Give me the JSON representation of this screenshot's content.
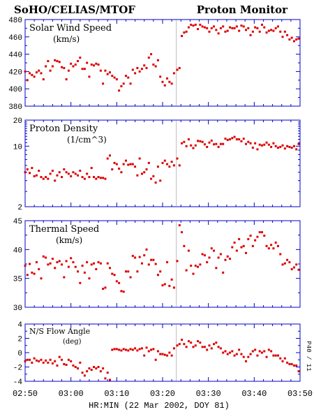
{
  "header": {
    "left_title": "SoHO/CELIAS/MTOF",
    "right_title": "Proton Monitor"
  },
  "xaxis": {
    "label": "HR:MIN (22 Mar 2002, DOY 81)",
    "tick_labels": [
      "02:50",
      "03:00",
      "03:10",
      "03:20",
      "03:30",
      "03:40",
      "03:50"
    ]
  },
  "side_label": "P40 / 11",
  "colors": {
    "frame": "#0000cc",
    "points": "#dd0000",
    "text": "#000000",
    "marker_line": "#bbbbbb"
  },
  "chart_data": [
    {
      "type": "scatter",
      "title": "Solar Wind Speed",
      "units": "(km/s)",
      "scale": "linear",
      "xlim": [
        0,
        60
      ],
      "ylim": [
        380,
        480
      ],
      "yticks": [
        380,
        400,
        420,
        440,
        460,
        480
      ],
      "ytick_labels": [
        "380",
        "400",
        "420",
        "440",
        "460",
        "480"
      ],
      "marker_x": 33,
      "x": [
        0.0,
        0.5,
        1.0,
        1.5,
        2.0,
        2.5,
        3.0,
        3.5,
        4.0,
        4.5,
        5.0,
        5.5,
        6.0,
        6.5,
        7.0,
        7.5,
        8.0,
        8.5,
        9.0,
        9.5,
        10.0,
        10.5,
        11.0,
        11.5,
        12.0,
        12.5,
        13.0,
        13.5,
        14.0,
        14.5,
        15.0,
        15.5,
        16.0,
        16.5,
        17.0,
        17.5,
        18.0,
        18.5,
        19.0,
        19.5,
        20.0,
        20.5,
        21.0,
        21.5,
        22.0,
        22.5,
        23.0,
        23.5,
        24.0,
        24.5,
        25.0,
        25.5,
        26.0,
        26.5,
        27.0,
        27.5,
        28.0,
        28.5,
        29.0,
        29.5,
        30.0,
        30.5,
        31.0,
        31.5,
        32.0,
        32.5,
        33.2,
        33.7,
        34.2,
        34.7,
        35.2,
        35.7,
        36.2,
        36.7,
        37.2,
        37.7,
        38.2,
        38.7,
        39.2,
        39.7,
        40.2,
        40.7,
        41.2,
        41.7,
        42.2,
        42.7,
        43.2,
        43.7,
        44.2,
        44.7,
        45.2,
        45.7,
        46.2,
        46.7,
        47.2,
        47.7,
        48.2,
        48.7,
        49.2,
        49.7,
        50.2,
        50.7,
        51.2,
        51.7,
        52.2,
        52.7,
        53.2,
        53.7,
        54.2,
        54.7,
        55.2,
        55.7,
        56.2,
        56.7,
        57.2,
        57.7,
        58.2,
        58.7,
        59.2,
        59.7
      ],
      "values": [
        420,
        410,
        418,
        416,
        414,
        419,
        421,
        418,
        411,
        426,
        432,
        421,
        426,
        433,
        432,
        431,
        425,
        424,
        411,
        421,
        429,
        426,
        428,
        432,
        436,
        423,
        423,
        430,
        414,
        428,
        427,
        429,
        428,
        421,
        406,
        421,
        417,
        419,
        415,
        413,
        411,
        398,
        403,
        406,
        415,
        413,
        406,
        422,
        418,
        424,
        420,
        423,
        427,
        424,
        436,
        440,
        428,
        426,
        433,
        414,
        408,
        404,
        412,
        408,
        406,
        418,
        422,
        424,
        461,
        465,
        466,
        471,
        474,
        473,
        474,
        469,
        474,
        472,
        471,
        470,
        466,
        470,
        472,
        468,
        464,
        470,
        472,
        466,
        467,
        471,
        470,
        470,
        472,
        467,
        473,
        472,
        468,
        470,
        462,
        466,
        471,
        470,
        466,
        474,
        471,
        465,
        467,
        468,
        467,
        470,
        472,
        466,
        460,
        466,
        462,
        457,
        459,
        455,
        457,
        458
      ]
    },
    {
      "type": "scatter",
      "title": "Proton Density",
      "units": "(1/cm^3)",
      "scale": "log",
      "xlim": [
        0,
        60
      ],
      "ylim": [
        2,
        20
      ],
      "yticks": [
        2,
        10,
        20
      ],
      "ytick_labels": [
        "2",
        "10",
        "20"
      ],
      "marker_x": 33,
      "x": [
        0.0,
        0.5,
        1.0,
        1.5,
        2.0,
        2.5,
        3.0,
        3.5,
        4.0,
        4.5,
        5.0,
        5.5,
        6.0,
        6.5,
        7.0,
        7.5,
        8.0,
        8.5,
        9.0,
        9.5,
        10.0,
        10.5,
        11.0,
        11.5,
        12.0,
        12.5,
        13.0,
        13.5,
        14.0,
        14.5,
        15.0,
        15.5,
        16.0,
        16.5,
        17.0,
        17.5,
        18.0,
        18.5,
        19.0,
        19.5,
        20.0,
        20.5,
        21.0,
        21.5,
        22.0,
        22.5,
        23.0,
        23.5,
        24.0,
        24.5,
        25.0,
        25.5,
        26.0,
        26.5,
        27.0,
        27.5,
        28.0,
        28.5,
        29.0,
        29.5,
        30.0,
        30.5,
        31.0,
        31.5,
        32.0,
        32.5,
        33.2,
        33.7,
        34.2,
        34.7,
        35.2,
        35.7,
        36.2,
        36.7,
        37.2,
        37.7,
        38.2,
        38.7,
        39.2,
        39.7,
        40.2,
        40.7,
        41.2,
        41.7,
        42.2,
        42.7,
        43.2,
        43.7,
        44.2,
        44.7,
        45.2,
        45.7,
        46.2,
        46.7,
        47.2,
        47.7,
        48.2,
        48.7,
        49.2,
        49.7,
        50.2,
        50.7,
        51.2,
        51.7,
        52.2,
        52.7,
        53.2,
        53.7,
        54.2,
        54.7,
        55.2,
        55.7,
        56.2,
        56.7,
        57.2,
        57.7,
        58.2,
        58.7,
        59.2,
        59.7
      ],
      "values": [
        5.0,
        5.4,
        4.9,
        5.6,
        4.5,
        4.6,
        5.2,
        4.4,
        4.2,
        4.4,
        4.2,
        4.8,
        5.2,
        4.0,
        4.6,
        5.0,
        4.4,
        5.4,
        5.0,
        4.8,
        4.5,
        5.0,
        4.8,
        4.6,
        5.2,
        4.4,
        4.2,
        4.8,
        4.4,
        5.6,
        4.4,
        4.2,
        4.4,
        4.3,
        4.3,
        4.2,
        7.2,
        7.8,
        5.4,
        6.4,
        6.2,
        5.5,
        5.0,
        6.2,
        6.8,
        6.1,
        6.2,
        6.2,
        5.8,
        4.6,
        7.2,
        4.8,
        5.0,
        5.4,
        6.4,
        4.2,
        4.5,
        3.8,
        5.8,
        4.0,
        6.4,
        6.8,
        6.2,
        5.8,
        6.6,
        6.0,
        7.2,
        6.0,
        10.8,
        11.2,
        10.0,
        12.0,
        10.2,
        9.5,
        10.2,
        11.5,
        11.4,
        11.2,
        10.5,
        9.8,
        11.0,
        11.6,
        10.5,
        10.6,
        9.8,
        10.6,
        10.6,
        12.2,
        11.8,
        12.0,
        12.4,
        12.8,
        12.0,
        12.0,
        11.4,
        12.2,
        10.6,
        11.2,
        10.8,
        9.6,
        10.8,
        9.2,
        10.4,
        10.2,
        10.4,
        11.0,
        10.4,
        9.8,
        10.8,
        10.0,
        9.6,
        9.8,
        10.2,
        9.4,
        10.0,
        9.8,
        9.6,
        10.0,
        9.2,
        10.6
      ]
    },
    {
      "type": "scatter",
      "title": "Thermal Speed",
      "units": "(km/s)",
      "scale": "linear",
      "xlim": [
        0,
        60
      ],
      "ylim": [
        30,
        45
      ],
      "yticks": [
        30,
        35,
        40,
        45
      ],
      "ytick_labels": [
        "30",
        "35",
        "40",
        "45"
      ],
      "marker_x": 33,
      "x": [
        0.0,
        0.5,
        1.0,
        1.5,
        2.0,
        2.5,
        3.0,
        3.5,
        4.0,
        4.5,
        5.0,
        5.5,
        6.0,
        6.5,
        7.0,
        7.5,
        8.0,
        8.5,
        9.0,
        9.5,
        10.0,
        10.5,
        11.0,
        11.5,
        12.0,
        12.5,
        13.0,
        13.5,
        14.0,
        14.5,
        15.0,
        15.5,
        16.0,
        16.5,
        17.0,
        17.5,
        18.0,
        18.5,
        19.0,
        19.5,
        20.0,
        20.5,
        21.0,
        21.5,
        22.0,
        22.5,
        23.0,
        23.5,
        24.0,
        24.5,
        25.0,
        25.5,
        26.0,
        26.5,
        27.0,
        27.5,
        28.0,
        28.5,
        29.0,
        29.5,
        30.0,
        30.5,
        31.0,
        31.5,
        32.0,
        32.5,
        33.2,
        33.7,
        34.2,
        34.7,
        35.2,
        35.7,
        36.2,
        36.7,
        37.2,
        37.7,
        38.2,
        38.7,
        39.2,
        39.7,
        40.2,
        40.7,
        41.2,
        41.7,
        42.2,
        42.7,
        43.2,
        43.7,
        44.2,
        44.7,
        45.2,
        45.7,
        46.2,
        46.7,
        47.2,
        47.7,
        48.2,
        48.7,
        49.2,
        49.7,
        50.2,
        50.7,
        51.2,
        51.7,
        52.2,
        52.7,
        53.2,
        53.7,
        54.2,
        54.7,
        55.2,
        55.7,
        56.2,
        56.7,
        57.2,
        57.7,
        58.2,
        58.7,
        59.2,
        59.7
      ],
      "values": [
        37.2,
        35.6,
        37.5,
        36.0,
        35.8,
        37.8,
        36.6,
        35.0,
        38.8,
        38.6,
        37.4,
        37.6,
        38.4,
        36.8,
        37.8,
        38.0,
        37.4,
        35.2,
        38.0,
        37.0,
        38.5,
        37.8,
        37.0,
        36.2,
        34.2,
        37.2,
        36.0,
        37.8,
        35.0,
        37.4,
        37.6,
        36.6,
        37.8,
        37.6,
        33.2,
        33.4,
        37.6,
        36.8,
        35.8,
        35.6,
        34.5,
        34.2,
        32.8,
        32.7,
        36.2,
        36.2,
        35.2,
        38.9,
        38.6,
        36.2,
        38.7,
        37.6,
        39.0,
        40.0,
        37.4,
        38.2,
        38.2,
        37.5,
        35.6,
        36.2,
        33.8,
        34.0,
        37.8,
        33.7,
        34.8,
        33.4,
        38.0,
        44.2,
        43.0,
        40.6,
        36.4,
        39.8,
        37.2,
        35.8,
        37.2,
        37.0,
        37.4,
        39.2,
        39.0,
        37.8,
        38.6,
        40.2,
        39.8,
        36.8,
        38.6,
        39.2,
        36.0,
        38.2,
        38.8,
        38.4,
        40.4,
        41.2,
        39.8,
        41.8,
        40.4,
        40.6,
        39.4,
        41.8,
        42.4,
        40.6,
        41.6,
        42.2,
        43.0,
        43.0,
        42.4,
        40.6,
        40.2,
        40.8,
        40.2,
        41.2,
        40.6,
        39.2,
        37.4,
        37.6,
        38.2,
        37.8,
        36.6,
        36.9,
        37.4,
        36.5
      ]
    },
    {
      "type": "scatter",
      "title": "N/S Flow Angle",
      "units": "(deg)",
      "scale": "linear",
      "xlim": [
        0,
        60
      ],
      "ylim": [
        -4,
        4
      ],
      "yticks": [
        -4,
        -2,
        0,
        2,
        4
      ],
      "ytick_labels": [
        "-4",
        "-2",
        "0",
        "2",
        "4"
      ],
      "marker_x": 33,
      "x": [
        0.0,
        0.5,
        1.0,
        1.5,
        2.0,
        2.5,
        3.0,
        3.5,
        4.0,
        4.5,
        5.0,
        5.5,
        6.0,
        6.5,
        7.0,
        7.5,
        8.0,
        8.5,
        9.0,
        9.5,
        10.0,
        10.5,
        11.0,
        11.5,
        12.0,
        12.5,
        13.0,
        13.5,
        14.0,
        14.5,
        15.0,
        15.5,
        16.0,
        16.5,
        17.0,
        17.5,
        18.0,
        18.5,
        19.0,
        19.5,
        20.0,
        20.5,
        21.0,
        21.5,
        22.0,
        22.5,
        23.0,
        23.5,
        24.0,
        24.5,
        25.0,
        25.5,
        26.0,
        26.5,
        27.0,
        27.5,
        28.0,
        28.5,
        29.0,
        29.5,
        30.0,
        30.5,
        31.0,
        31.5,
        32.0,
        32.5,
        33.2,
        33.7,
        34.2,
        34.7,
        35.2,
        35.7,
        36.2,
        36.7,
        37.2,
        37.7,
        38.2,
        38.7,
        39.2,
        39.7,
        40.2,
        40.7,
        41.2,
        41.7,
        42.2,
        42.7,
        43.2,
        43.7,
        44.2,
        44.7,
        45.2,
        45.7,
        46.2,
        46.7,
        47.2,
        47.7,
        48.2,
        48.7,
        49.2,
        49.7,
        50.2,
        50.7,
        51.2,
        51.7,
        52.2,
        52.7,
        53.2,
        53.7,
        54.2,
        54.7,
        55.2,
        55.7,
        56.2,
        56.7,
        57.2,
        57.7,
        58.2,
        58.7,
        59.2,
        59.7
      ],
      "values": [
        -1.2,
        -1.0,
        -1.0,
        -1.4,
        -0.8,
        -1.1,
        -1.2,
        -1.0,
        -1.4,
        -1.1,
        -1.4,
        -1.0,
        -1.5,
        -1.2,
        -1.8,
        -0.6,
        -1.0,
        -1.6,
        -1.7,
        -1.0,
        -1.2,
        -1.8,
        -2.0,
        -2.2,
        -1.4,
        -2.8,
        -3.2,
        -2.6,
        -2.2,
        -2.4,
        -2.0,
        -2.2,
        -2.0,
        -2.6,
        -2.2,
        -3.6,
        -2.8,
        -3.8,
        0.4,
        0.5,
        0.5,
        0.4,
        0.3,
        0.5,
        0.4,
        0.3,
        0.5,
        0.4,
        0.6,
        0.3,
        0.5,
        0.6,
        -0.4,
        0.7,
        0.2,
        0.4,
        0.5,
        -1.0,
        0.2,
        -0.2,
        -0.2,
        -0.3,
        -0.4,
        0.0,
        -0.4,
        0.6,
        1.0,
        1.2,
        1.8,
        1.2,
        0.8,
        1.6,
        1.4,
        0.8,
        1.0,
        1.6,
        1.4,
        0.8,
        0.8,
        0.4,
        1.0,
        0.6,
        1.2,
        1.4,
        0.8,
        0.6,
        0.0,
        0.2,
        -0.2,
        0.0,
        0.2,
        -0.4,
        -0.2,
        0.4,
        -0.2,
        -0.6,
        -1.2,
        -0.6,
        -0.2,
        0.2,
        0.4,
        -0.4,
        0.2,
        0.0,
        0.2,
        -0.6,
        0.4,
        0.2,
        -0.4,
        -0.4,
        -0.4,
        -0.8,
        -1.2,
        -0.8,
        -1.4,
        -1.6,
        -1.6,
        -1.8,
        -1.8,
        -2.6
      ]
    }
  ]
}
